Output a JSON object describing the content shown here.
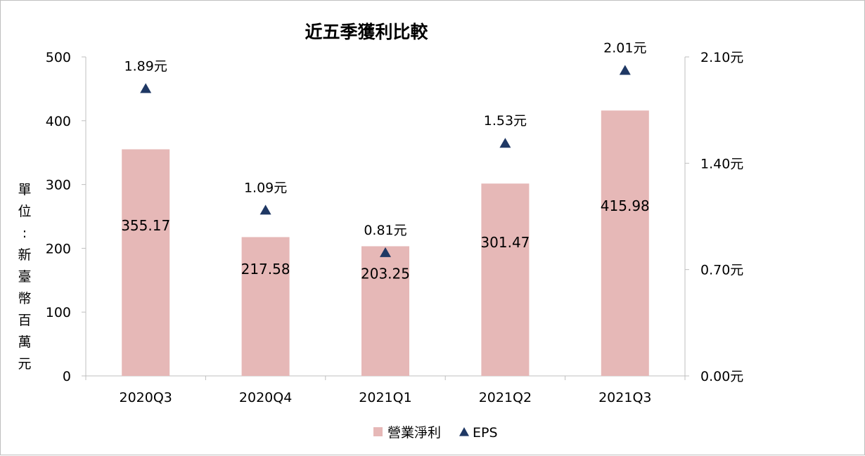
{
  "chart_data": {
    "type": "bar",
    "title": "近五季獲利比較",
    "ylabel": "單位：新臺幣百萬元",
    "categories": [
      "2020Q3",
      "2020Q4",
      "2021Q1",
      "2021Q2",
      "2021Q3"
    ],
    "series": [
      {
        "name": "營業淨利",
        "type": "bar",
        "axis": "left",
        "color": "#e6b8b7",
        "values": [
          355.17,
          217.58,
          203.25,
          301.47,
          415.98
        ],
        "labels": [
          "355.17",
          "217.58",
          "203.25",
          "301.47",
          "415.98"
        ]
      },
      {
        "name": "EPS",
        "type": "scatter",
        "marker": "triangle",
        "axis": "right",
        "color": "#1f3864",
        "values": [
          1.89,
          1.09,
          0.81,
          1.53,
          2.01
        ],
        "labels": [
          "1.89元",
          "1.09元",
          "0.81元",
          "1.53元",
          "2.01元"
        ]
      }
    ],
    "y_left": {
      "min": 0,
      "max": 500,
      "ticks": [
        0,
        100,
        200,
        300,
        400,
        500
      ],
      "tick_labels": [
        "0",
        "100",
        "200",
        "300",
        "400",
        "500"
      ]
    },
    "y_right": {
      "min": 0,
      "max": 2.1,
      "ticks": [
        0,
        0.7,
        1.4,
        2.1
      ],
      "tick_labels": [
        "0.00元",
        "0.70元",
        "1.40元",
        "2.10元"
      ]
    },
    "grid": false,
    "legend_position": "bottom"
  }
}
